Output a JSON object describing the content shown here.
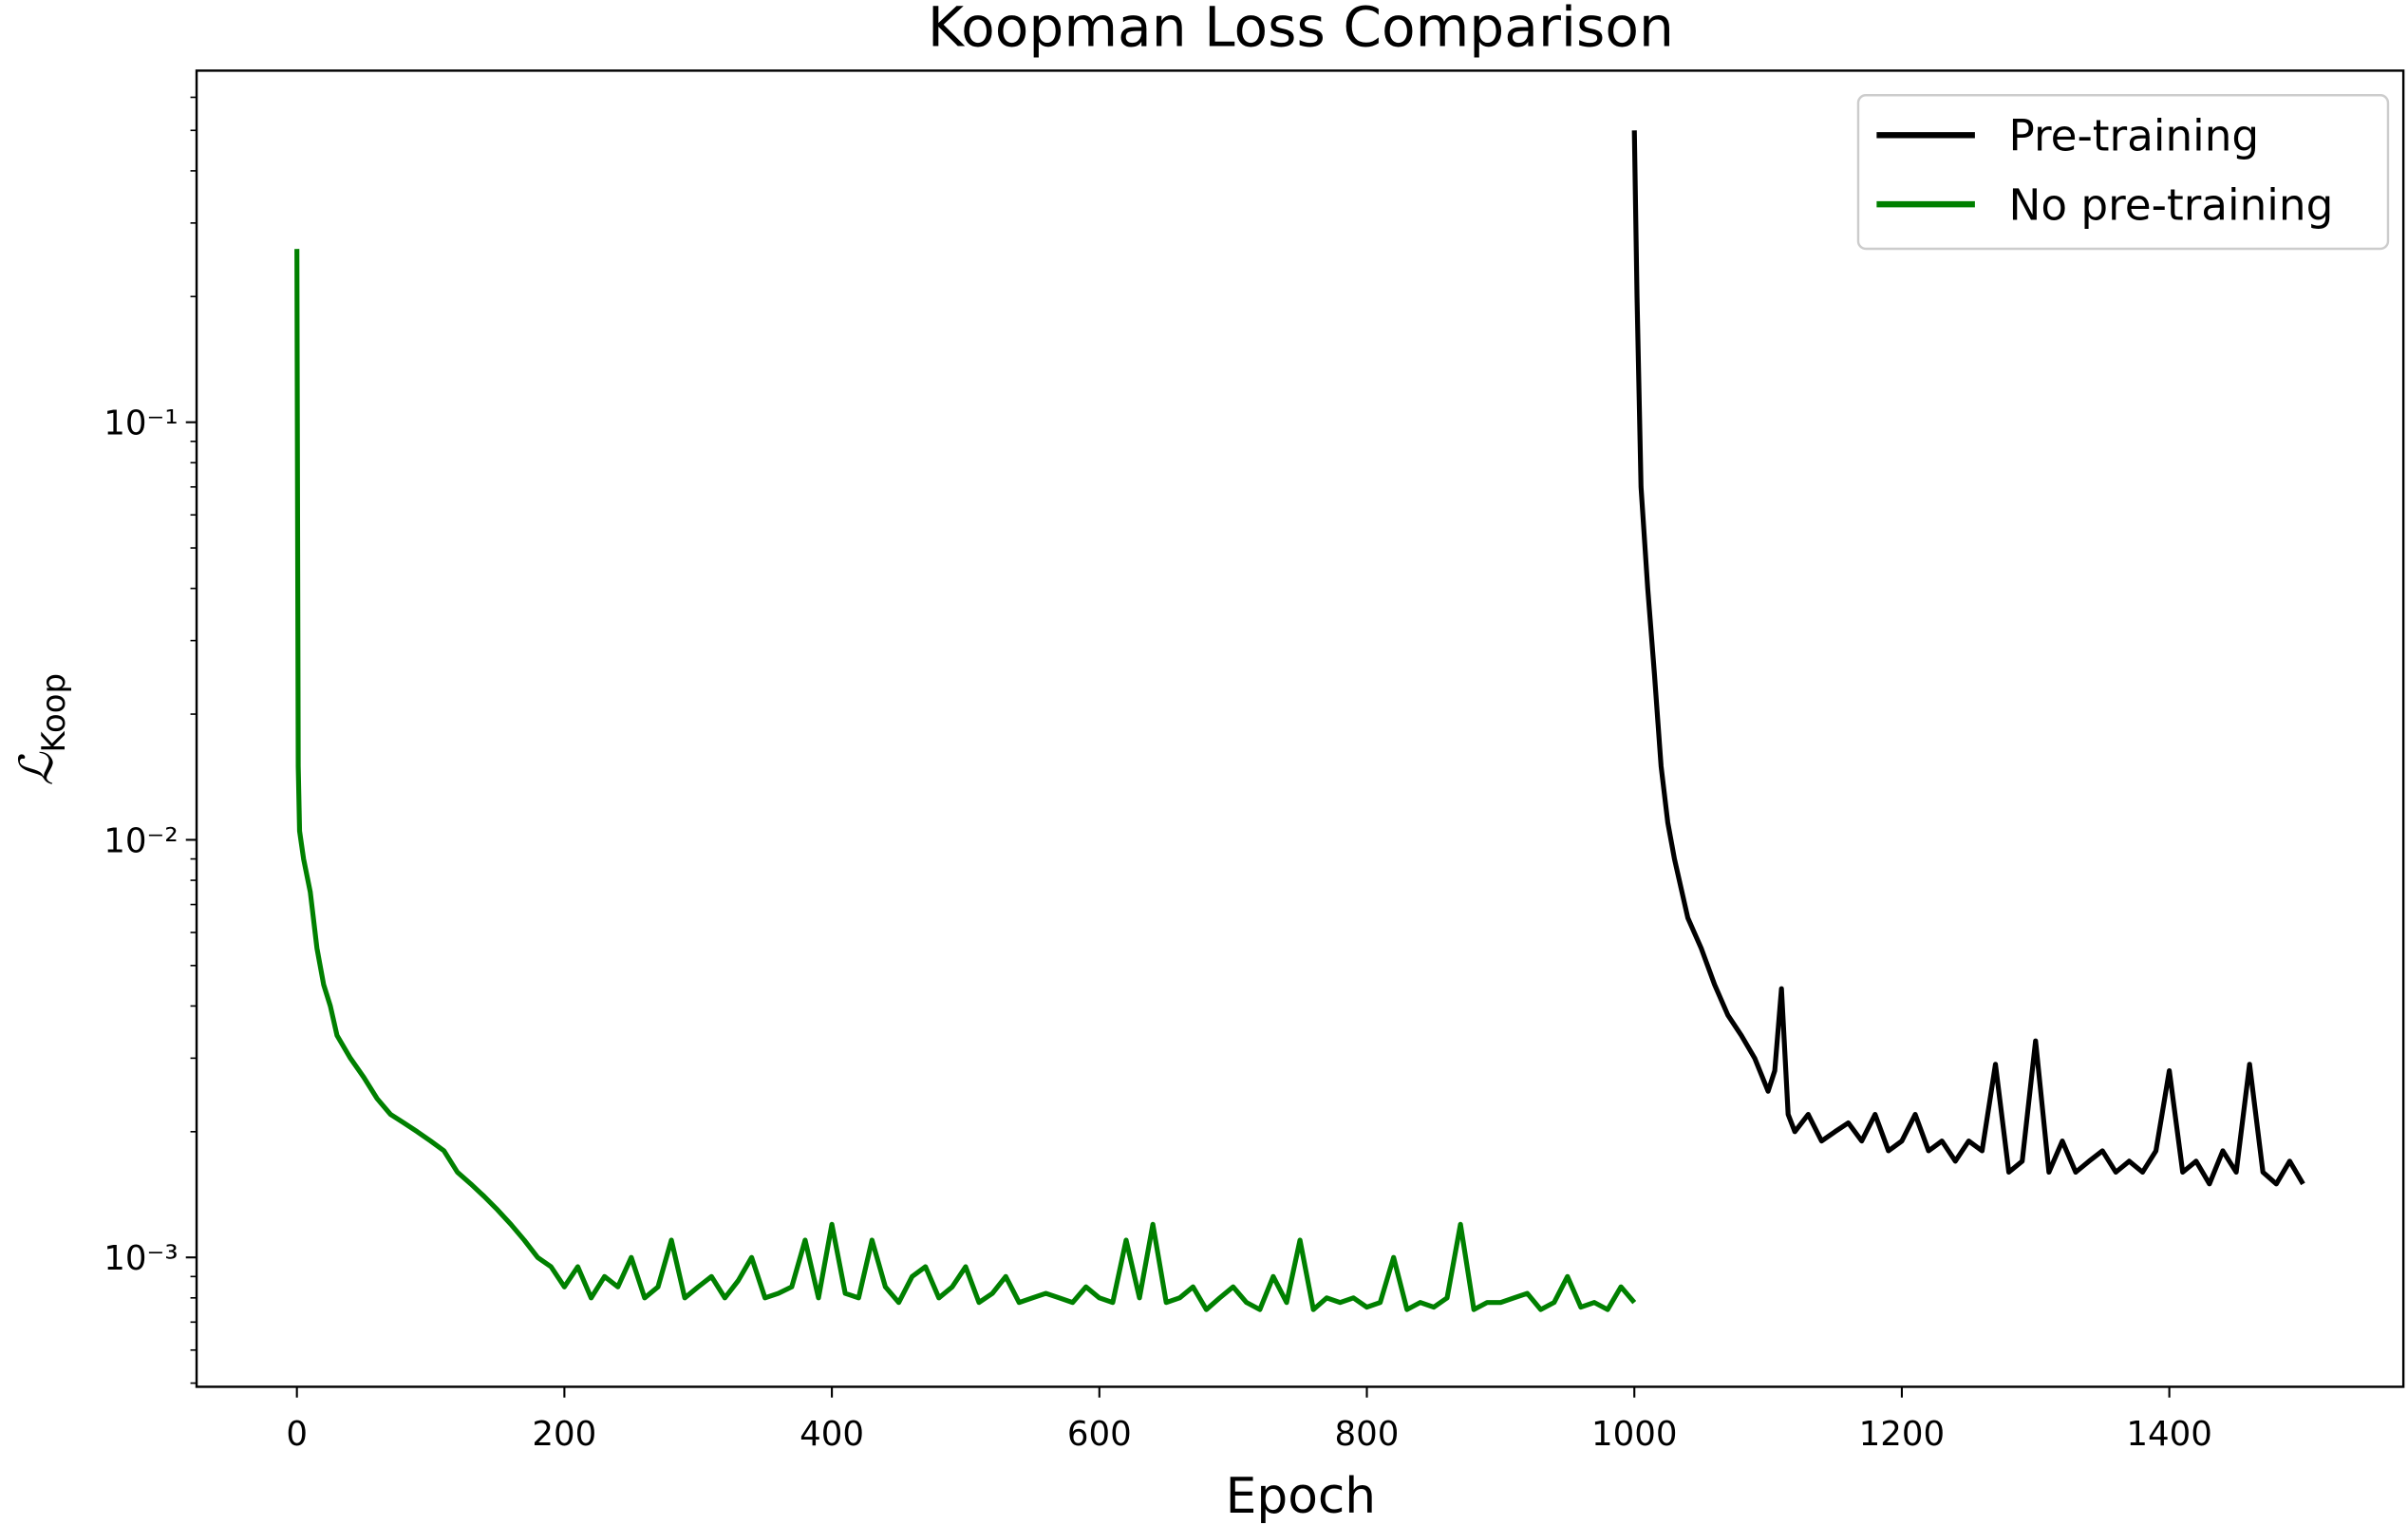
{
  "chart_data": {
    "type": "line",
    "title": "Koopman Loss Comparison",
    "xlabel": "Epoch",
    "ylabel": "ℒ",
    "ylabel_sub": "Koop",
    "log_y": true,
    "legend": "upper right",
    "xlim": [
      -75,
      1575
    ],
    "xticks": [
      0,
      200,
      400,
      600,
      800,
      1000,
      1200,
      1400
    ],
    "ylim": [
      0.00049,
      0.695
    ],
    "yticks": [
      {
        "value": 0.001,
        "label": "10⁻³"
      },
      {
        "value": 0.01,
        "label": "10⁻²"
      },
      {
        "value": 0.1,
        "label": "10⁻¹"
      }
    ],
    "yminorticks": [
      0.0005,
      0.0006,
      0.0007,
      0.0008,
      0.0009,
      0.002,
      0.003,
      0.004,
      0.005,
      0.006,
      0.007,
      0.008,
      0.009,
      0.02,
      0.03,
      0.04,
      0.05,
      0.06,
      0.07,
      0.08,
      0.09,
      0.2,
      0.3,
      0.4,
      0.5,
      0.6
    ],
    "series": [
      {
        "name": "Pre-training",
        "color": "#000000",
        "x": [
          1000,
          1002,
          1005,
          1010,
          1015,
          1020,
          1025,
          1030,
          1040,
          1050,
          1060,
          1070,
          1080,
          1090,
          1100,
          1105,
          1110,
          1115,
          1120,
          1130,
          1140,
          1150,
          1160,
          1170,
          1180,
          1190,
          1200,
          1210,
          1220,
          1230,
          1240,
          1250,
          1260,
          1270,
          1280,
          1290,
          1300,
          1310,
          1320,
          1330,
          1340,
          1350,
          1360,
          1370,
          1380,
          1390,
          1400,
          1410,
          1420,
          1430,
          1440,
          1450,
          1460,
          1470,
          1480,
          1490,
          1500
        ],
        "values": [
          0.5,
          0.2,
          0.07,
          0.04,
          0.025,
          0.015,
          0.011,
          0.009,
          0.0065,
          0.0055,
          0.0045,
          0.0038,
          0.0034,
          0.003,
          0.0025,
          0.0028,
          0.0044,
          0.0022,
          0.002,
          0.0022,
          0.0019,
          0.002,
          0.0021,
          0.0019,
          0.0022,
          0.0018,
          0.0019,
          0.0022,
          0.0018,
          0.0019,
          0.0017,
          0.0019,
          0.0018,
          0.0029,
          0.0016,
          0.0017,
          0.0033,
          0.0016,
          0.0019,
          0.0016,
          0.0017,
          0.0018,
          0.0016,
          0.0017,
          0.0016,
          0.0018,
          0.0028,
          0.0016,
          0.0017,
          0.0015,
          0.0018,
          0.0016,
          0.0029,
          0.0016,
          0.0015,
          0.0017,
          0.0015
        ]
      },
      {
        "name": "No pre-training",
        "color": "#008000",
        "x": [
          0,
          1,
          2,
          5,
          10,
          15,
          20,
          25,
          30,
          40,
          50,
          60,
          70,
          80,
          90,
          100,
          110,
          120,
          130,
          140,
          150,
          160,
          170,
          180,
          190,
          200,
          210,
          220,
          230,
          240,
          250,
          260,
          270,
          280,
          290,
          300,
          310,
          320,
          330,
          340,
          350,
          360,
          370,
          380,
          390,
          400,
          410,
          420,
          430,
          440,
          450,
          460,
          470,
          480,
          490,
          500,
          510,
          520,
          530,
          540,
          550,
          560,
          570,
          580,
          590,
          600,
          610,
          620,
          630,
          640,
          650,
          660,
          670,
          680,
          690,
          700,
          710,
          720,
          730,
          740,
          750,
          760,
          770,
          780,
          790,
          800,
          810,
          820,
          830,
          840,
          850,
          860,
          870,
          880,
          890,
          900,
          910,
          920,
          930,
          940,
          950,
          960,
          970,
          980,
          990,
          1000
        ],
        "values": [
          0.26,
          0.015,
          0.0105,
          0.009,
          0.0075,
          0.0055,
          0.0045,
          0.004,
          0.0034,
          0.003,
          0.0027,
          0.0024,
          0.0022,
          0.0021,
          0.002,
          0.0019,
          0.0018,
          0.0016,
          0.0015,
          0.0014,
          0.0013,
          0.0012,
          0.0011,
          0.001,
          0.00095,
          0.00085,
          0.00095,
          0.0008,
          0.0009,
          0.00085,
          0.001,
          0.0008,
          0.00085,
          0.0011,
          0.0008,
          0.00085,
          0.0009,
          0.0008,
          0.00088,
          0.001,
          0.0008,
          0.00082,
          0.00085,
          0.0011,
          0.0008,
          0.0012,
          0.00082,
          0.0008,
          0.0011,
          0.00085,
          0.00078,
          0.0009,
          0.00095,
          0.0008,
          0.00085,
          0.00095,
          0.00078,
          0.00082,
          0.0009,
          0.00078,
          0.0008,
          0.00082,
          0.0008,
          0.00078,
          0.00085,
          0.0008,
          0.00078,
          0.0011,
          0.0008,
          0.0012,
          0.00078,
          0.0008,
          0.00085,
          0.00075,
          0.0008,
          0.00085,
          0.00078,
          0.00075,
          0.0009,
          0.00078,
          0.0011,
          0.00075,
          0.0008,
          0.00078,
          0.0008,
          0.00076,
          0.00078,
          0.001,
          0.00075,
          0.00078,
          0.00076,
          0.0008,
          0.0012,
          0.00075,
          0.00078,
          0.00078,
          0.0008,
          0.00082,
          0.00075,
          0.00078,
          0.0009,
          0.00076,
          0.00078,
          0.00075,
          0.00085,
          0.00078
        ]
      }
    ]
  }
}
